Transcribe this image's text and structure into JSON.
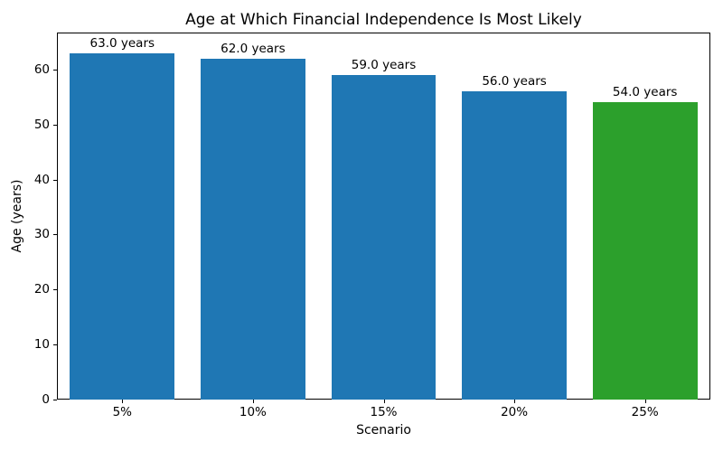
{
  "chart_data": {
    "type": "bar",
    "title": "Age at Which Financial Independence Is Most Likely",
    "xlabel": "Scenario",
    "ylabel": "Age (years)",
    "categories": [
      "5%",
      "10%",
      "15%",
      "20%",
      "25%"
    ],
    "values": [
      63.0,
      62.0,
      59.0,
      56.0,
      54.0
    ],
    "bar_labels": [
      "63.0 years",
      "62.0 years",
      "59.0 years",
      "56.0 years",
      "54.0 years"
    ],
    "bar_colors": [
      "#1f77b4",
      "#1f77b4",
      "#1f77b4",
      "#1f77b4",
      "#2ca02c"
    ],
    "highlight_color": "#2ca02c",
    "default_bar_color": "#1f77b4",
    "yticks": [
      0,
      10,
      20,
      30,
      40,
      50,
      60
    ],
    "ylim": [
      0,
      66.7
    ],
    "bar_width_fraction": 0.8,
    "grid": false,
    "legend_position": "none",
    "background_color": "#ffffff",
    "text_color": "#000000"
  }
}
